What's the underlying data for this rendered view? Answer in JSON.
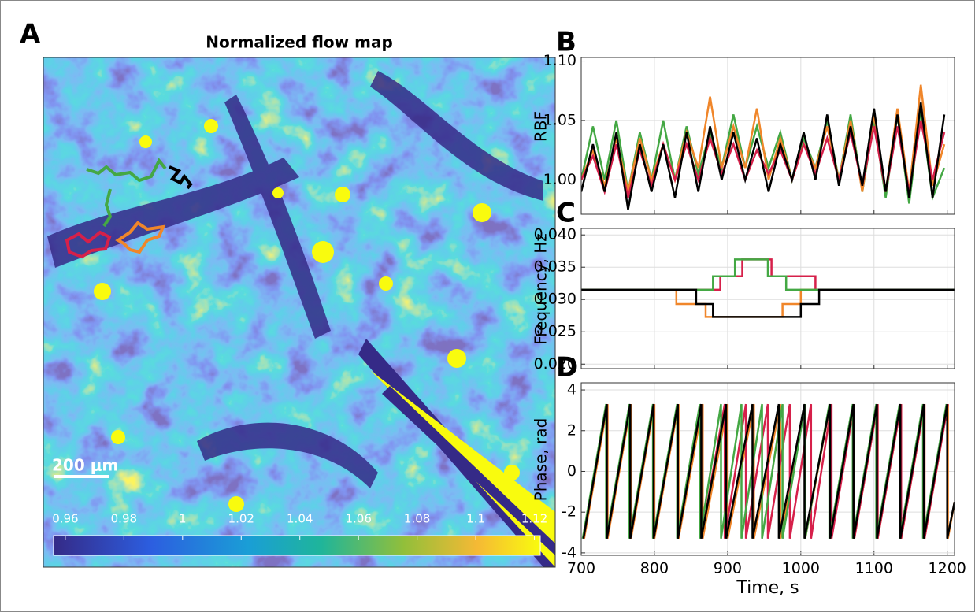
{
  "chart_data": [
    {
      "type": "heatmap",
      "panel": "A",
      "title": "Normalized flow map",
      "scale_bar": "200 μm",
      "colorbar": {
        "lim": [
          0.956,
          1.122
        ],
        "ticks": [
          0.96,
          0.98,
          1,
          1.02,
          1.04,
          1.06,
          1.08,
          1.1,
          1.12
        ]
      }
    },
    {
      "type": "line",
      "panel": "B",
      "ylabel": "RBF",
      "grid": true,
      "xlim": [
        700,
        1210
      ],
      "xticks": [
        700,
        800,
        900,
        1000,
        1100,
        1200
      ],
      "ylim": [
        0.971,
        1.103
      ],
      "yticks": [
        {
          "value": 1,
          "label": "1.00"
        },
        1.05,
        {
          "value": 1.1,
          "label": "1.10"
        }
      ],
      "x": [
        700,
        716,
        732,
        748,
        764,
        780,
        796,
        812,
        828,
        844,
        860,
        876,
        892,
        908,
        924,
        940,
        956,
        972,
        988,
        1004,
        1020,
        1036,
        1052,
        1068,
        1084,
        1100,
        1116,
        1132,
        1148,
        1164,
        1180,
        1196
      ],
      "series": [
        {
          "color": "#44a844",
          "values": [
            1.0,
            1.045,
            1.0,
            1.05,
            0.99,
            1.04,
            1.0,
            1.05,
            1.0,
            1.045,
            1.005,
            1.04,
            1.01,
            1.055,
            1.01,
            1.045,
            1.01,
            1.04,
            1.0,
            1.035,
            1.01,
            1.05,
            1.0,
            1.055,
            0.99,
            1.05,
            0.985,
            1.055,
            0.98,
            1.06,
            0.985,
            1.01
          ]
        },
        {
          "color": "#f0862a",
          "values": [
            1.0,
            1.025,
            0.995,
            1.035,
            0.99,
            1.035,
            1.0,
            1.03,
            1.0,
            1.04,
            1.01,
            1.07,
            1.01,
            1.045,
            1.01,
            1.06,
            1.0,
            1.035,
            1.0,
            1.03,
            1.01,
            1.045,
            1.0,
            1.05,
            0.99,
            1.055,
            0.99,
            1.06,
            0.99,
            1.08,
            0.995,
            1.03
          ]
        },
        {
          "color": "#d6204a",
          "values": [
            1.0,
            1.02,
            0.99,
            1.03,
            0.985,
            1.025,
            0.995,
            1.03,
            1.0,
            1.03,
            1.0,
            1.035,
            1.005,
            1.03,
            1.0,
            1.025,
            1.005,
            1.025,
            1.0,
            1.03,
            1.005,
            1.035,
            1.0,
            1.04,
            0.995,
            1.045,
            0.99,
            1.045,
            0.99,
            1.05,
            1.0,
            1.04
          ]
        },
        {
          "color": "#000000",
          "values": [
            0.99,
            1.03,
            0.99,
            1.04,
            0.975,
            1.03,
            0.99,
            1.03,
            0.985,
            1.04,
            0.99,
            1.045,
            1.0,
            1.04,
            1.0,
            1.035,
            0.99,
            1.03,
            1.0,
            1.04,
            1.0,
            1.055,
            0.995,
            1.045,
            0.995,
            1.06,
            0.99,
            1.055,
            0.985,
            1.065,
            0.985,
            1.055
          ]
        }
      ]
    },
    {
      "type": "line",
      "panel": "C",
      "ylabel": "Frequency, Hz",
      "grid": true,
      "xlim": [
        700,
        1210
      ],
      "xticks": [
        700,
        800,
        900,
        1000,
        1100,
        1200
      ],
      "ylim": [
        0.0193,
        0.041
      ],
      "yticks": [
        {
          "value": 0.02,
          "label": "0.020"
        },
        0.025,
        {
          "value": 0.03,
          "label": "0.030"
        },
        0.035,
        {
          "value": 0.04,
          "label": "0.040"
        }
      ],
      "series": [
        {
          "color": "#f0862a",
          "x": [
            700,
            830,
            830,
            870,
            870,
            975,
            975,
            1000,
            1000,
            1210
          ],
          "values": [
            0.0315,
            0.0315,
            0.0293,
            0.0293,
            0.0273,
            0.0273,
            0.0293,
            0.0293,
            0.0315,
            0.0315
          ]
        },
        {
          "color": "#d6204a",
          "x": [
            700,
            890,
            890,
            920,
            920,
            960,
            960,
            1020,
            1020,
            1210
          ],
          "values": [
            0.0315,
            0.0315,
            0.0336,
            0.0336,
            0.0362,
            0.0362,
            0.0336,
            0.0336,
            0.0315,
            0.0315
          ]
        },
        {
          "color": "#44a844",
          "x": [
            700,
            880,
            880,
            910,
            910,
            955,
            955,
            980,
            980,
            1210
          ],
          "values": [
            0.0315,
            0.0315,
            0.0336,
            0.0336,
            0.0362,
            0.0362,
            0.0336,
            0.0336,
            0.0315,
            0.0315
          ]
        },
        {
          "color": "#000000",
          "x": [
            700,
            857,
            857,
            880,
            880,
            1000,
            1000,
            1025,
            1025,
            1210
          ],
          "values": [
            0.0315,
            0.0315,
            0.0293,
            0.0293,
            0.0273,
            0.0273,
            0.0293,
            0.0293,
            0.0315,
            0.0315
          ]
        }
      ]
    },
    {
      "type": "line",
      "panel": "D",
      "ylabel": "Phase, rad",
      "xlabel": "Time, s",
      "grid": true,
      "xlim": [
        700,
        1210
      ],
      "xticks": [
        700,
        800,
        900,
        1000,
        1100,
        1200
      ],
      "ylim": [
        -4.12,
        4.35
      ],
      "yticks": [
        -4,
        -2,
        0,
        2,
        4
      ],
      "series": [
        {
          "color": "#f0862a",
          "x": [
            704,
            736,
            736,
            768,
            768,
            800,
            800,
            833,
            833,
            866,
            866,
            900,
            900,
            936,
            936,
            972,
            972,
            1006,
            1006,
            1040,
            1040,
            1073,
            1073,
            1105,
            1105,
            1137,
            1137,
            1169,
            1169,
            1201,
            1201,
            1210
          ],
          "values": [
            -3.3,
            3.3,
            -3.3,
            3.3,
            -3.3,
            3.3,
            -3.3,
            3.3,
            -3.3,
            3.3,
            -3.3,
            3.3,
            -3.3,
            3.3,
            -3.3,
            3.3,
            -3.3,
            3.3,
            -3.3,
            3.3,
            -3.3,
            3.3,
            -3.3,
            3.3,
            -3.3,
            3.3,
            -3.3,
            3.3,
            -3.3,
            3.3,
            -3.3,
            -1.5
          ]
        },
        {
          "color": "#d6204a",
          "x": [
            703,
            735,
            735,
            767,
            767,
            799,
            799,
            832,
            832,
            864,
            864,
            896,
            896,
            925,
            925,
            955,
            955,
            985,
            985,
            1014,
            1014,
            1042,
            1042,
            1073,
            1073,
            1105,
            1105,
            1137,
            1137,
            1169,
            1169,
            1201
          ],
          "values": [
            -3.3,
            3.3,
            -3.3,
            3.3,
            -3.3,
            3.3,
            -3.3,
            3.3,
            -3.3,
            3.3,
            -3.3,
            3.3,
            -3.3,
            3.3,
            -3.3,
            3.3,
            -3.3,
            3.3,
            -3.3,
            3.3,
            -3.3,
            3.3,
            -3.3,
            3.3,
            -3.3,
            3.3,
            -3.3,
            3.3,
            -3.3,
            3.3,
            -3.3,
            3.3
          ]
        },
        {
          "color": "#44a844",
          "x": [
            702,
            734,
            734,
            766,
            766,
            798,
            798,
            831,
            831,
            862,
            862,
            891,
            891,
            919,
            919,
            947,
            947,
            975,
            975,
            1006,
            1006,
            1039,
            1039,
            1071,
            1071,
            1103,
            1103,
            1135,
            1135,
            1167,
            1167,
            1199
          ],
          "values": [
            -3.3,
            3.3,
            -3.3,
            3.3,
            -3.3,
            3.3,
            -3.3,
            3.3,
            -3.3,
            3.3,
            -3.3,
            3.3,
            -3.3,
            3.3,
            -3.3,
            3.3,
            -3.3,
            3.3,
            -3.3,
            3.3,
            -3.3,
            3.3,
            -3.3,
            3.3,
            -3.3,
            3.3,
            -3.3,
            3.3,
            -3.3,
            3.3,
            -3.3,
            3.3
          ]
        },
        {
          "color": "#000000",
          "x": [
            703,
            735,
            735,
            767,
            767,
            799,
            799,
            832,
            832,
            864,
            864,
            898,
            898,
            934,
            934,
            970,
            970,
            1005,
            1005,
            1040,
            1040,
            1072,
            1072,
            1104,
            1104,
            1136,
            1136,
            1168,
            1168,
            1200,
            1200,
            1210
          ],
          "values": [
            -3.3,
            3.3,
            -3.3,
            3.3,
            -3.3,
            3.3,
            -3.3,
            3.3,
            -3.3,
            3.3,
            -3.3,
            3.3,
            -3.3,
            3.3,
            -3.3,
            3.3,
            -3.3,
            3.3,
            -3.3,
            3.3,
            -3.3,
            3.3,
            -3.3,
            3.3,
            -3.3,
            3.3,
            -3.3,
            3.3,
            -3.3,
            3.3,
            -3.3,
            -1.5
          ]
        }
      ]
    }
  ]
}
